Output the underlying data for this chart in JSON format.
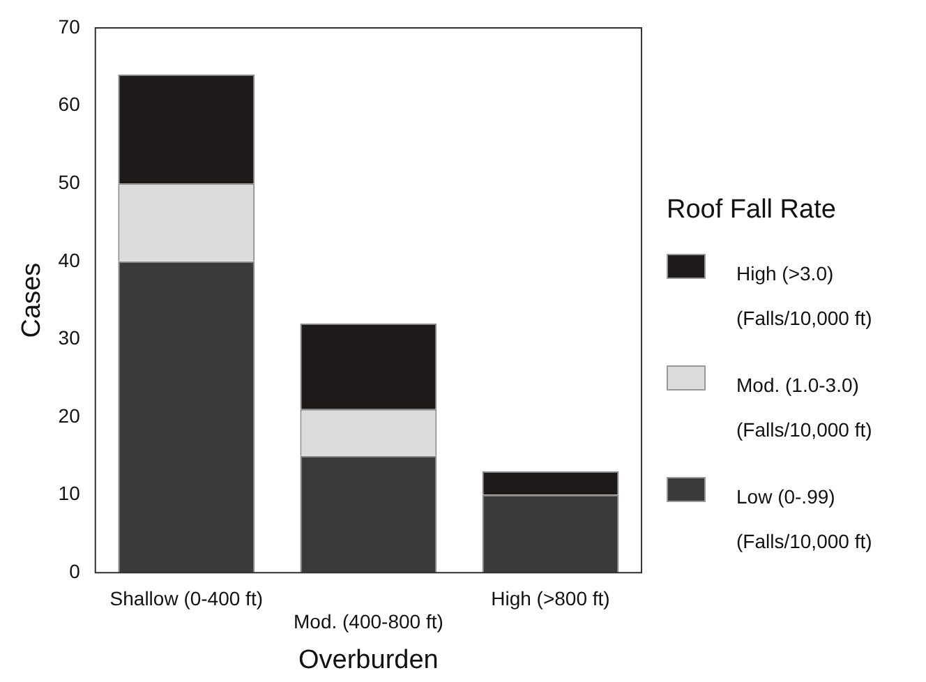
{
  "chart_data": {
    "type": "bar",
    "xlabel": "Overburden",
    "ylabel": "Cases",
    "legend_title": "Roof Fall Rate",
    "categories": [
      "Shallow (0-400 ft)",
      "Mod. (400-800 ft)",
      "High (>800 ft)"
    ],
    "series": [
      {
        "name": "Low (0-.99)\n(Falls/10,000 ft)",
        "color": "#3a3a3a",
        "values": [
          40,
          15,
          10
        ]
      },
      {
        "name": "Mod. (1.0-3.0)\n(Falls/10,000 ft)",
        "color": "#dcdcdc",
        "values": [
          10,
          6,
          0
        ]
      },
      {
        "name": "High (>3.0)\n(Falls/10,000 ft)",
        "color": "#1e1a1a",
        "values": [
          14,
          11,
          3
        ]
      }
    ],
    "stacked": true,
    "ylim": [
      0,
      70
    ],
    "yticks": [
      0,
      10,
      20,
      30,
      40,
      50,
      60,
      70
    ],
    "grid": false,
    "legend": "right"
  }
}
